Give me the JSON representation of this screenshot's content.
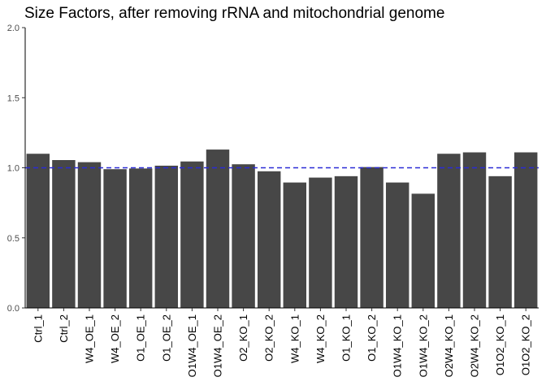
{
  "chart_data": {
    "type": "bar",
    "title": "Size Factors, after removing rRNA and mitochondrial genome",
    "xlabel": "",
    "ylabel": "",
    "ylim": [
      0,
      2
    ],
    "yticks": [
      "0.0",
      "0.5",
      "1.0",
      "1.5",
      "2.0"
    ],
    "ytick_values": [
      0,
      0.5,
      1.0,
      1.5,
      2.0
    ],
    "categories": [
      "Ctrl_1",
      "Ctrl_2",
      "W4_OE_1",
      "W4_OE_2",
      "O1_OE_1",
      "O1_OE_2",
      "O1W4_OE_1",
      "O1W4_OE_2",
      "O2_KO_1",
      "O2_KO_2",
      "W4_KO_1",
      "W4_KO_2",
      "O1_KO_1",
      "O1_KO_2",
      "O1W4_KO_1",
      "O1W4_KO_2",
      "O2W4_KO_1",
      "O2W4_KO_2",
      "O1O2_KO_1",
      "O1O2_KO_2"
    ],
    "values": [
      1.1,
      1.055,
      1.04,
      0.99,
      0.995,
      1.015,
      1.045,
      1.13,
      1.025,
      0.975,
      0.895,
      0.93,
      0.94,
      1.005,
      0.895,
      0.815,
      1.1,
      1.11,
      0.94,
      1.11
    ],
    "reference_line": {
      "y": 1.0,
      "style": "dashed",
      "color": "#2b2bd6"
    },
    "bar_color": "#474747",
    "grid": false,
    "legend": "none"
  }
}
